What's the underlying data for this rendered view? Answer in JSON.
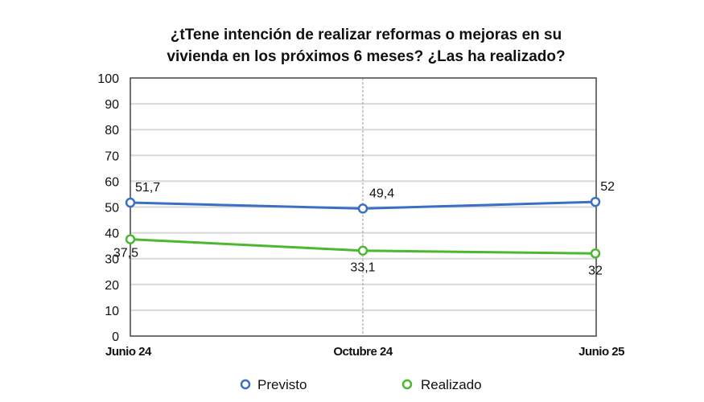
{
  "chart_data": {
    "type": "line",
    "title_lines": [
      "¿tTene intención de realizar reformas o mejoras en su",
      "vivienda en los próximos 6 meses? ¿Las ha realizado?"
    ],
    "categories": [
      "Junio 24",
      "Octubre 24",
      "Junio 25"
    ],
    "ylim": [
      0,
      100
    ],
    "yticks": [
      0,
      10,
      20,
      30,
      40,
      50,
      60,
      70,
      80,
      90,
      100
    ],
    "grid": true,
    "legend_position": "bottom",
    "series": [
      {
        "name": "Previsto",
        "color": "#3a6fc4",
        "values": [
          51.7,
          49.4,
          52
        ],
        "labels": [
          "51,7",
          "49,4",
          "52"
        ]
      },
      {
        "name": "Realizado",
        "color": "#4cb82f",
        "values": [
          37.5,
          33.1,
          32
        ],
        "labels": [
          "37,5",
          "33,1",
          "32"
        ]
      }
    ]
  }
}
